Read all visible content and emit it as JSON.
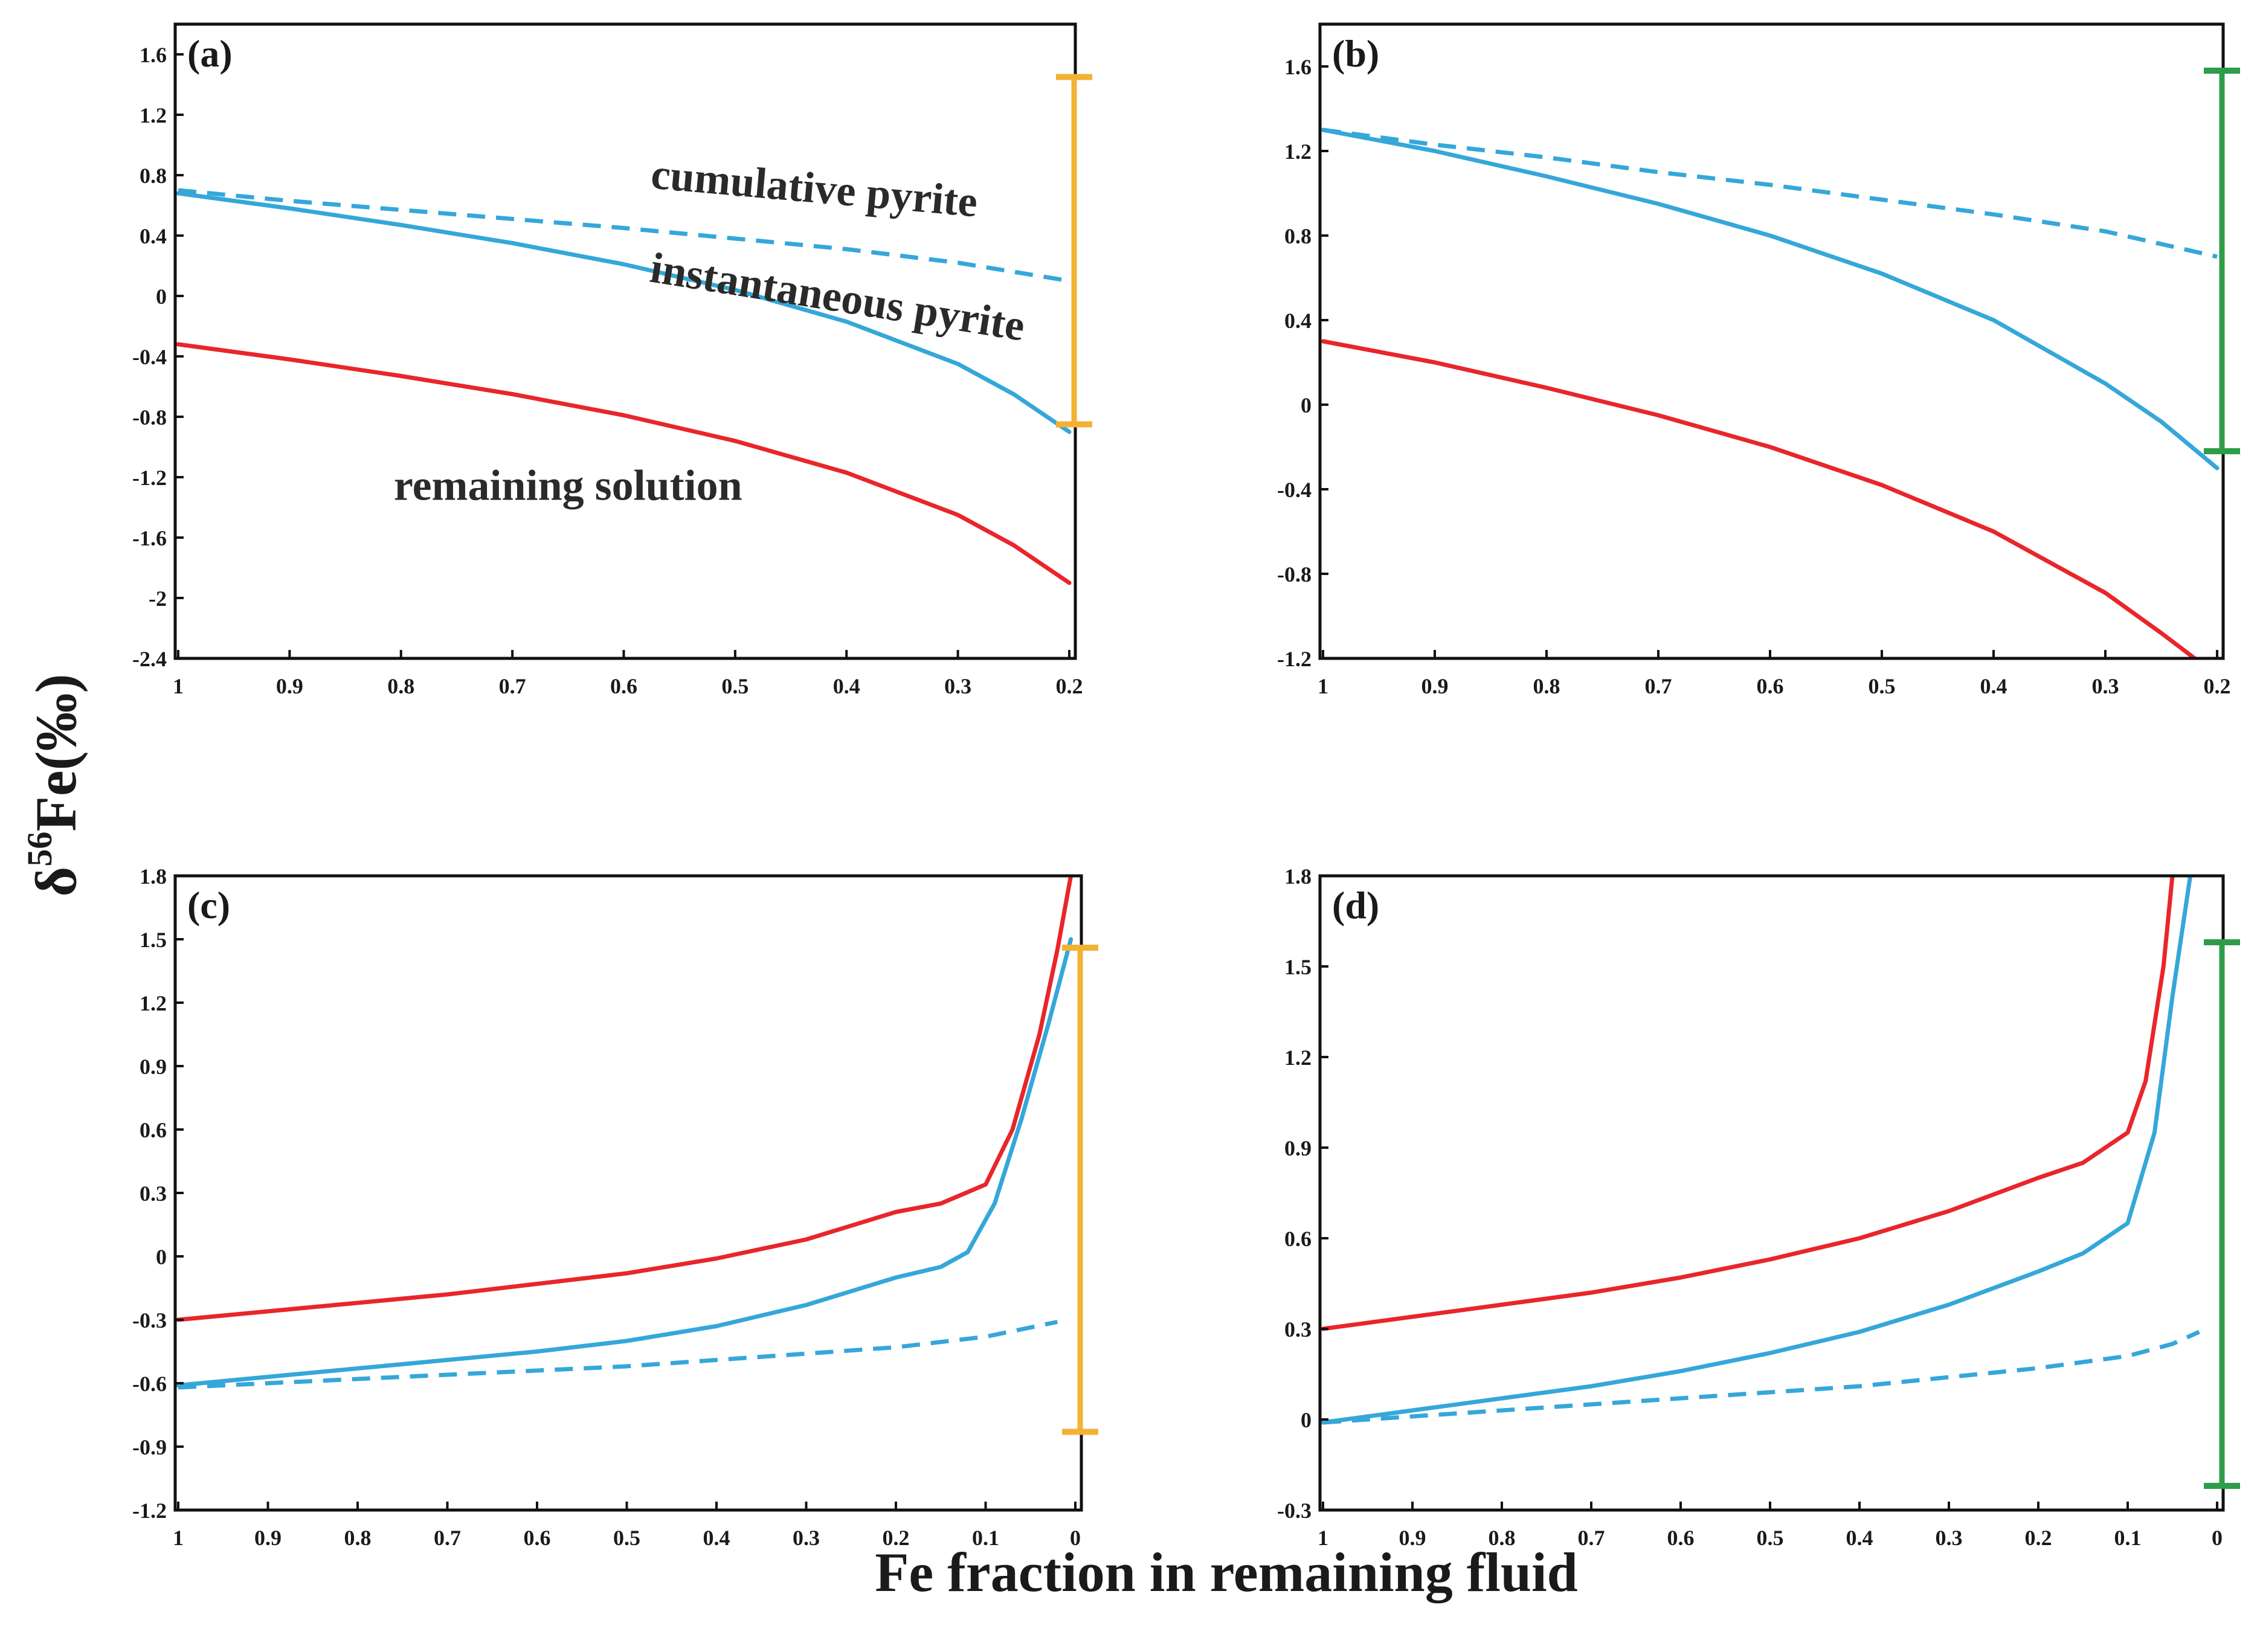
{
  "figure": {
    "ylabel_symbol": "δ",
    "ylabel_super": "56",
    "ylabel_rest": "Fe(‰)",
    "xlabel": "Fe fraction in remaining fluid"
  },
  "colors": {
    "remaining": "#e8262b",
    "instantaneous": "#35a7d9",
    "cumulative": "#35a7d9",
    "bar_orange": "#f2b233",
    "bar_green": "#2e9c4a",
    "axis": "#111111"
  },
  "chart_data": [
    {
      "type": "line",
      "panel": "(a)",
      "xlim": [
        1,
        0.2
      ],
      "ylim": [
        -2.4,
        1.8
      ],
      "xticks": [
        1,
        0.9,
        0.8,
        0.7,
        0.6,
        0.5,
        0.4,
        0.3,
        0.2
      ],
      "xticklabels": [
        "1",
        "0.9",
        "0.8",
        "0.7",
        "0.6",
        "0.5",
        "0.4",
        "0.3",
        "0.2"
      ],
      "yticks": [
        -2.4,
        -2,
        -1.6,
        -1.2,
        -0.8,
        -0.4,
        0,
        0.4,
        0.8,
        1.2,
        1.6
      ],
      "yticklabels": [
        "-2.4",
        "-2",
        "-1.6",
        "-1.2",
        "-0.8",
        "-0.4",
        "0",
        "0.4",
        "0.8",
        "1.2",
        "1.6"
      ],
      "annotations": [
        {
          "text": "cumulative pyrite",
          "x": 0.43,
          "y": 0.62,
          "rotate": 5
        },
        {
          "text": "instantaneous pyrite",
          "x": 0.41,
          "y": -0.1,
          "rotate": 9
        },
        {
          "text": "remaining solution",
          "x": 0.65,
          "y": -1.35,
          "rotate": 0
        }
      ],
      "range_bar": {
        "x": 0.2,
        "y_min": -0.85,
        "y_max": 1.45,
        "color": "orange"
      },
      "series": [
        {
          "name": "remaining solution",
          "style": "solid",
          "color": "remaining",
          "x": [
            1,
            0.9,
            0.8,
            0.7,
            0.6,
            0.5,
            0.4,
            0.3,
            0.25,
            0.2
          ],
          "y": [
            -0.32,
            -0.42,
            -0.53,
            -0.65,
            -0.79,
            -0.96,
            -1.17,
            -1.45,
            -1.65,
            -1.9
          ]
        },
        {
          "name": "instantaneous pyrite",
          "style": "solid",
          "color": "instantaneous",
          "x": [
            1,
            0.9,
            0.8,
            0.7,
            0.6,
            0.5,
            0.4,
            0.3,
            0.25,
            0.2
          ],
          "y": [
            0.68,
            0.58,
            0.47,
            0.35,
            0.21,
            0.04,
            -0.17,
            -0.45,
            -0.65,
            -0.9
          ]
        },
        {
          "name": "cumulative pyrite",
          "style": "dashed",
          "color": "cumulative",
          "x": [
            1,
            0.9,
            0.8,
            0.7,
            0.6,
            0.5,
            0.4,
            0.3,
            0.2
          ],
          "y": [
            0.7,
            0.63,
            0.57,
            0.51,
            0.45,
            0.38,
            0.31,
            0.22,
            0.1
          ]
        }
      ]
    },
    {
      "type": "line",
      "panel": "(b)",
      "xlim": [
        1,
        0.2
      ],
      "ylim": [
        -1.2,
        1.8
      ],
      "xticks": [
        1,
        0.9,
        0.8,
        0.7,
        0.6,
        0.5,
        0.4,
        0.3,
        0.2
      ],
      "xticklabels": [
        "1",
        "0.9",
        "0.8",
        "0.7",
        "0.6",
        "0.5",
        "0.4",
        "0.3",
        "0.2"
      ],
      "yticks": [
        -1.2,
        -0.8,
        -0.4,
        0,
        0.4,
        0.8,
        1.2,
        1.6
      ],
      "yticklabels": [
        "-1.2",
        "-0.8",
        "-0.4",
        "0",
        "0.4",
        "0.8",
        "1.2",
        "1.6"
      ],
      "range_bar": {
        "x": 0.2,
        "y_min": -0.22,
        "y_max": 1.58,
        "color": "green"
      },
      "series": [
        {
          "name": "remaining solution",
          "style": "solid",
          "color": "remaining",
          "x": [
            1,
            0.9,
            0.8,
            0.7,
            0.6,
            0.5,
            0.4,
            0.3,
            0.25,
            0.22
          ],
          "y": [
            0.3,
            0.2,
            0.08,
            -0.05,
            -0.2,
            -0.38,
            -0.6,
            -0.89,
            -1.08,
            -1.2
          ]
        },
        {
          "name": "instantaneous pyrite",
          "style": "solid",
          "color": "instantaneous",
          "x": [
            1,
            0.9,
            0.8,
            0.7,
            0.6,
            0.5,
            0.4,
            0.3,
            0.25,
            0.2
          ],
          "y": [
            1.3,
            1.2,
            1.08,
            0.95,
            0.8,
            0.62,
            0.4,
            0.1,
            -0.08,
            -0.3
          ]
        },
        {
          "name": "cumulative pyrite",
          "style": "dashed",
          "color": "cumulative",
          "x": [
            1,
            0.9,
            0.8,
            0.7,
            0.6,
            0.5,
            0.4,
            0.3,
            0.2
          ],
          "y": [
            1.3,
            1.23,
            1.17,
            1.1,
            1.04,
            0.97,
            0.9,
            0.82,
            0.7
          ]
        }
      ]
    },
    {
      "type": "line",
      "panel": "(c)",
      "xlim": [
        1,
        0
      ],
      "ylim": [
        -1.2,
        1.8
      ],
      "xticks": [
        1,
        0.9,
        0.8,
        0.7,
        0.6,
        0.5,
        0.4,
        0.3,
        0.2,
        0.1,
        0
      ],
      "xticklabels": [
        "1",
        "0.9",
        "0.8",
        "0.7",
        "0.6",
        "0.5",
        "0.4",
        "0.3",
        "0.2",
        "0.1",
        "0"
      ],
      "yticks": [
        -1.2,
        -0.9,
        -0.6,
        -0.3,
        0,
        0.3,
        0.6,
        0.9,
        1.2,
        1.5,
        1.8
      ],
      "yticklabels": [
        "-1.2",
        "-0.9",
        "-0.6",
        "-0.3",
        "0",
        "0.3",
        "0.6",
        "0.9",
        "1.2",
        "1.5",
        "1.8"
      ],
      "range_bar": {
        "x": 0,
        "y_min": -0.83,
        "y_max": 1.46,
        "color": "orange"
      },
      "series": [
        {
          "name": "remaining solution",
          "style": "solid",
          "color": "remaining",
          "x": [
            1,
            0.9,
            0.8,
            0.7,
            0.6,
            0.5,
            0.4,
            0.3,
            0.2,
            0.15,
            0.1,
            0.07,
            0.04,
            0.02,
            0.005
          ],
          "y": [
            -0.3,
            -0.26,
            -0.22,
            -0.18,
            -0.13,
            -0.08,
            -0.01,
            0.08,
            0.21,
            0.25,
            0.34,
            0.6,
            1.05,
            1.45,
            1.8
          ]
        },
        {
          "name": "instantaneous pyrite",
          "style": "solid",
          "color": "instantaneous",
          "x": [
            1,
            0.9,
            0.8,
            0.7,
            0.6,
            0.5,
            0.4,
            0.3,
            0.2,
            0.15,
            0.12,
            0.09,
            0.06,
            0.03,
            0.005
          ],
          "y": [
            -0.61,
            -0.57,
            -0.53,
            -0.49,
            -0.45,
            -0.4,
            -0.33,
            -0.23,
            -0.1,
            -0.05,
            0.02,
            0.25,
            0.65,
            1.1,
            1.5
          ]
        },
        {
          "name": "cumulative pyrite",
          "style": "dashed",
          "color": "cumulative",
          "x": [
            1,
            0.9,
            0.8,
            0.7,
            0.6,
            0.5,
            0.4,
            0.3,
            0.2,
            0.1,
            0.02
          ],
          "y": [
            -0.62,
            -0.6,
            -0.58,
            -0.56,
            -0.54,
            -0.52,
            -0.49,
            -0.46,
            -0.43,
            -0.38,
            -0.31
          ]
        }
      ]
    },
    {
      "type": "line",
      "panel": "(d)",
      "xlim": [
        1,
        0
      ],
      "ylim": [
        -0.3,
        1.8
      ],
      "xticks": [
        1,
        0.9,
        0.8,
        0.7,
        0.6,
        0.5,
        0.4,
        0.3,
        0.2,
        0.1,
        0
      ],
      "xticklabels": [
        "1",
        "0.9",
        "0.8",
        "0.7",
        "0.6",
        "0.5",
        "0.4",
        "0.3",
        "0.2",
        "0.1",
        "0"
      ],
      "yticks": [
        -0.3,
        0,
        0.3,
        0.6,
        0.9,
        1.2,
        1.5,
        1.8
      ],
      "yticklabels": [
        "-0.3",
        "0",
        "0.3",
        "0.6",
        "0.9",
        "1.2",
        "1.5",
        "1.8"
      ],
      "range_bar": {
        "x": 0,
        "y_min": -0.22,
        "y_max": 1.58,
        "color": "green"
      },
      "series": [
        {
          "name": "remaining solution",
          "style": "solid",
          "color": "remaining",
          "x": [
            1,
            0.9,
            0.8,
            0.7,
            0.6,
            0.5,
            0.4,
            0.3,
            0.2,
            0.15,
            0.1,
            0.08,
            0.06,
            0.05
          ],
          "y": [
            0.3,
            0.34,
            0.38,
            0.42,
            0.47,
            0.53,
            0.6,
            0.69,
            0.8,
            0.85,
            0.95,
            1.12,
            1.5,
            1.8
          ]
        },
        {
          "name": "instantaneous pyrite",
          "style": "solid",
          "color": "instantaneous",
          "x": [
            1,
            0.9,
            0.8,
            0.7,
            0.6,
            0.5,
            0.4,
            0.3,
            0.2,
            0.15,
            0.1,
            0.07,
            0.05,
            0.03
          ],
          "y": [
            -0.01,
            0.03,
            0.07,
            0.11,
            0.16,
            0.22,
            0.29,
            0.38,
            0.49,
            0.55,
            0.65,
            0.95,
            1.4,
            1.8
          ]
        },
        {
          "name": "cumulative pyrite",
          "style": "dashed",
          "color": "cumulative",
          "x": [
            1,
            0.9,
            0.8,
            0.7,
            0.6,
            0.5,
            0.4,
            0.3,
            0.2,
            0.1,
            0.05,
            0.02
          ],
          "y": [
            -0.01,
            0.01,
            0.03,
            0.05,
            0.07,
            0.09,
            0.11,
            0.14,
            0.17,
            0.21,
            0.25,
            0.29
          ]
        }
      ]
    }
  ]
}
